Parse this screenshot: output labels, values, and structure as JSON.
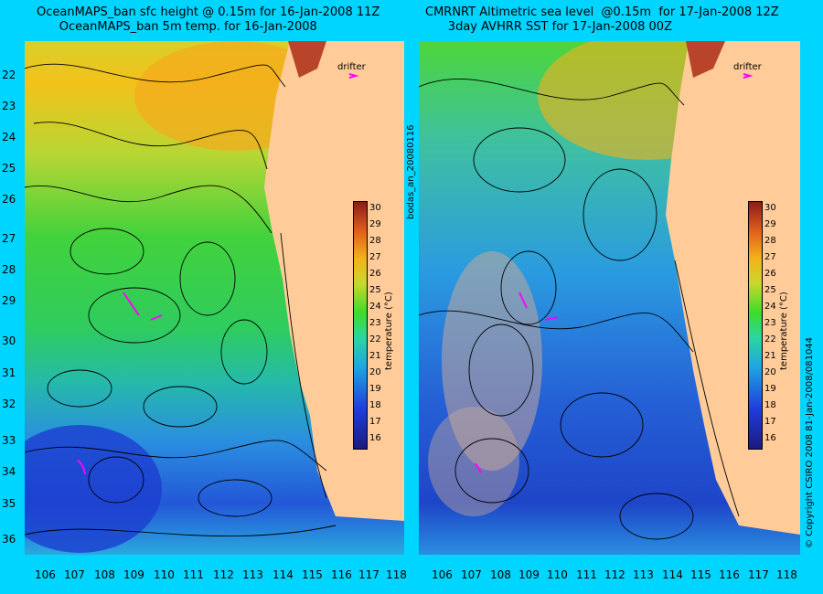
{
  "left_panel": {
    "title_line1": "OceanMAPS_ban sfc height @ 0.15m for 16-Jan-2008 11Z",
    "title_line2": "OceanMAPS_ban 5m temp. for 16-Jan-2008",
    "drifter_label": "drifter",
    "colorbar_title": "temperature (°C)"
  },
  "right_panel": {
    "title_line1": "CMRNRT Altimetric sea level  @0.15m  for 17-Jan-2008 12Z",
    "title_line2": "3day AVHRR SST for 17-Jan-2008 00Z",
    "drifter_label": "drifter",
    "colorbar_title": "temperature (°C)"
  },
  "side_text": {
    "center_vertical": "bodas_an_20080116",
    "right_vertical": "© Copyright CSIRO 2008    81-Jan-2008/081044"
  },
  "latitudes": [
    "22",
    "23",
    "24",
    "25",
    "26",
    "27",
    "28",
    "29",
    "30",
    "31",
    "32",
    "33",
    "34",
    "35",
    "36"
  ],
  "longitudes": [
    "106",
    "107",
    "108",
    "109",
    "110",
    "111",
    "112",
    "113",
    "114",
    "115",
    "116",
    "117",
    "118"
  ],
  "colorbar_ticks": [
    "30",
    "29",
    "28",
    "27",
    "26",
    "25",
    "24",
    "23",
    "22",
    "21",
    "20",
    "19",
    "18",
    "17",
    "16"
  ],
  "colors": {
    "background": "#00d5ff",
    "land": "#ffcc99",
    "contours": "#000000",
    "drifter_track": "#ff00ff"
  }
}
